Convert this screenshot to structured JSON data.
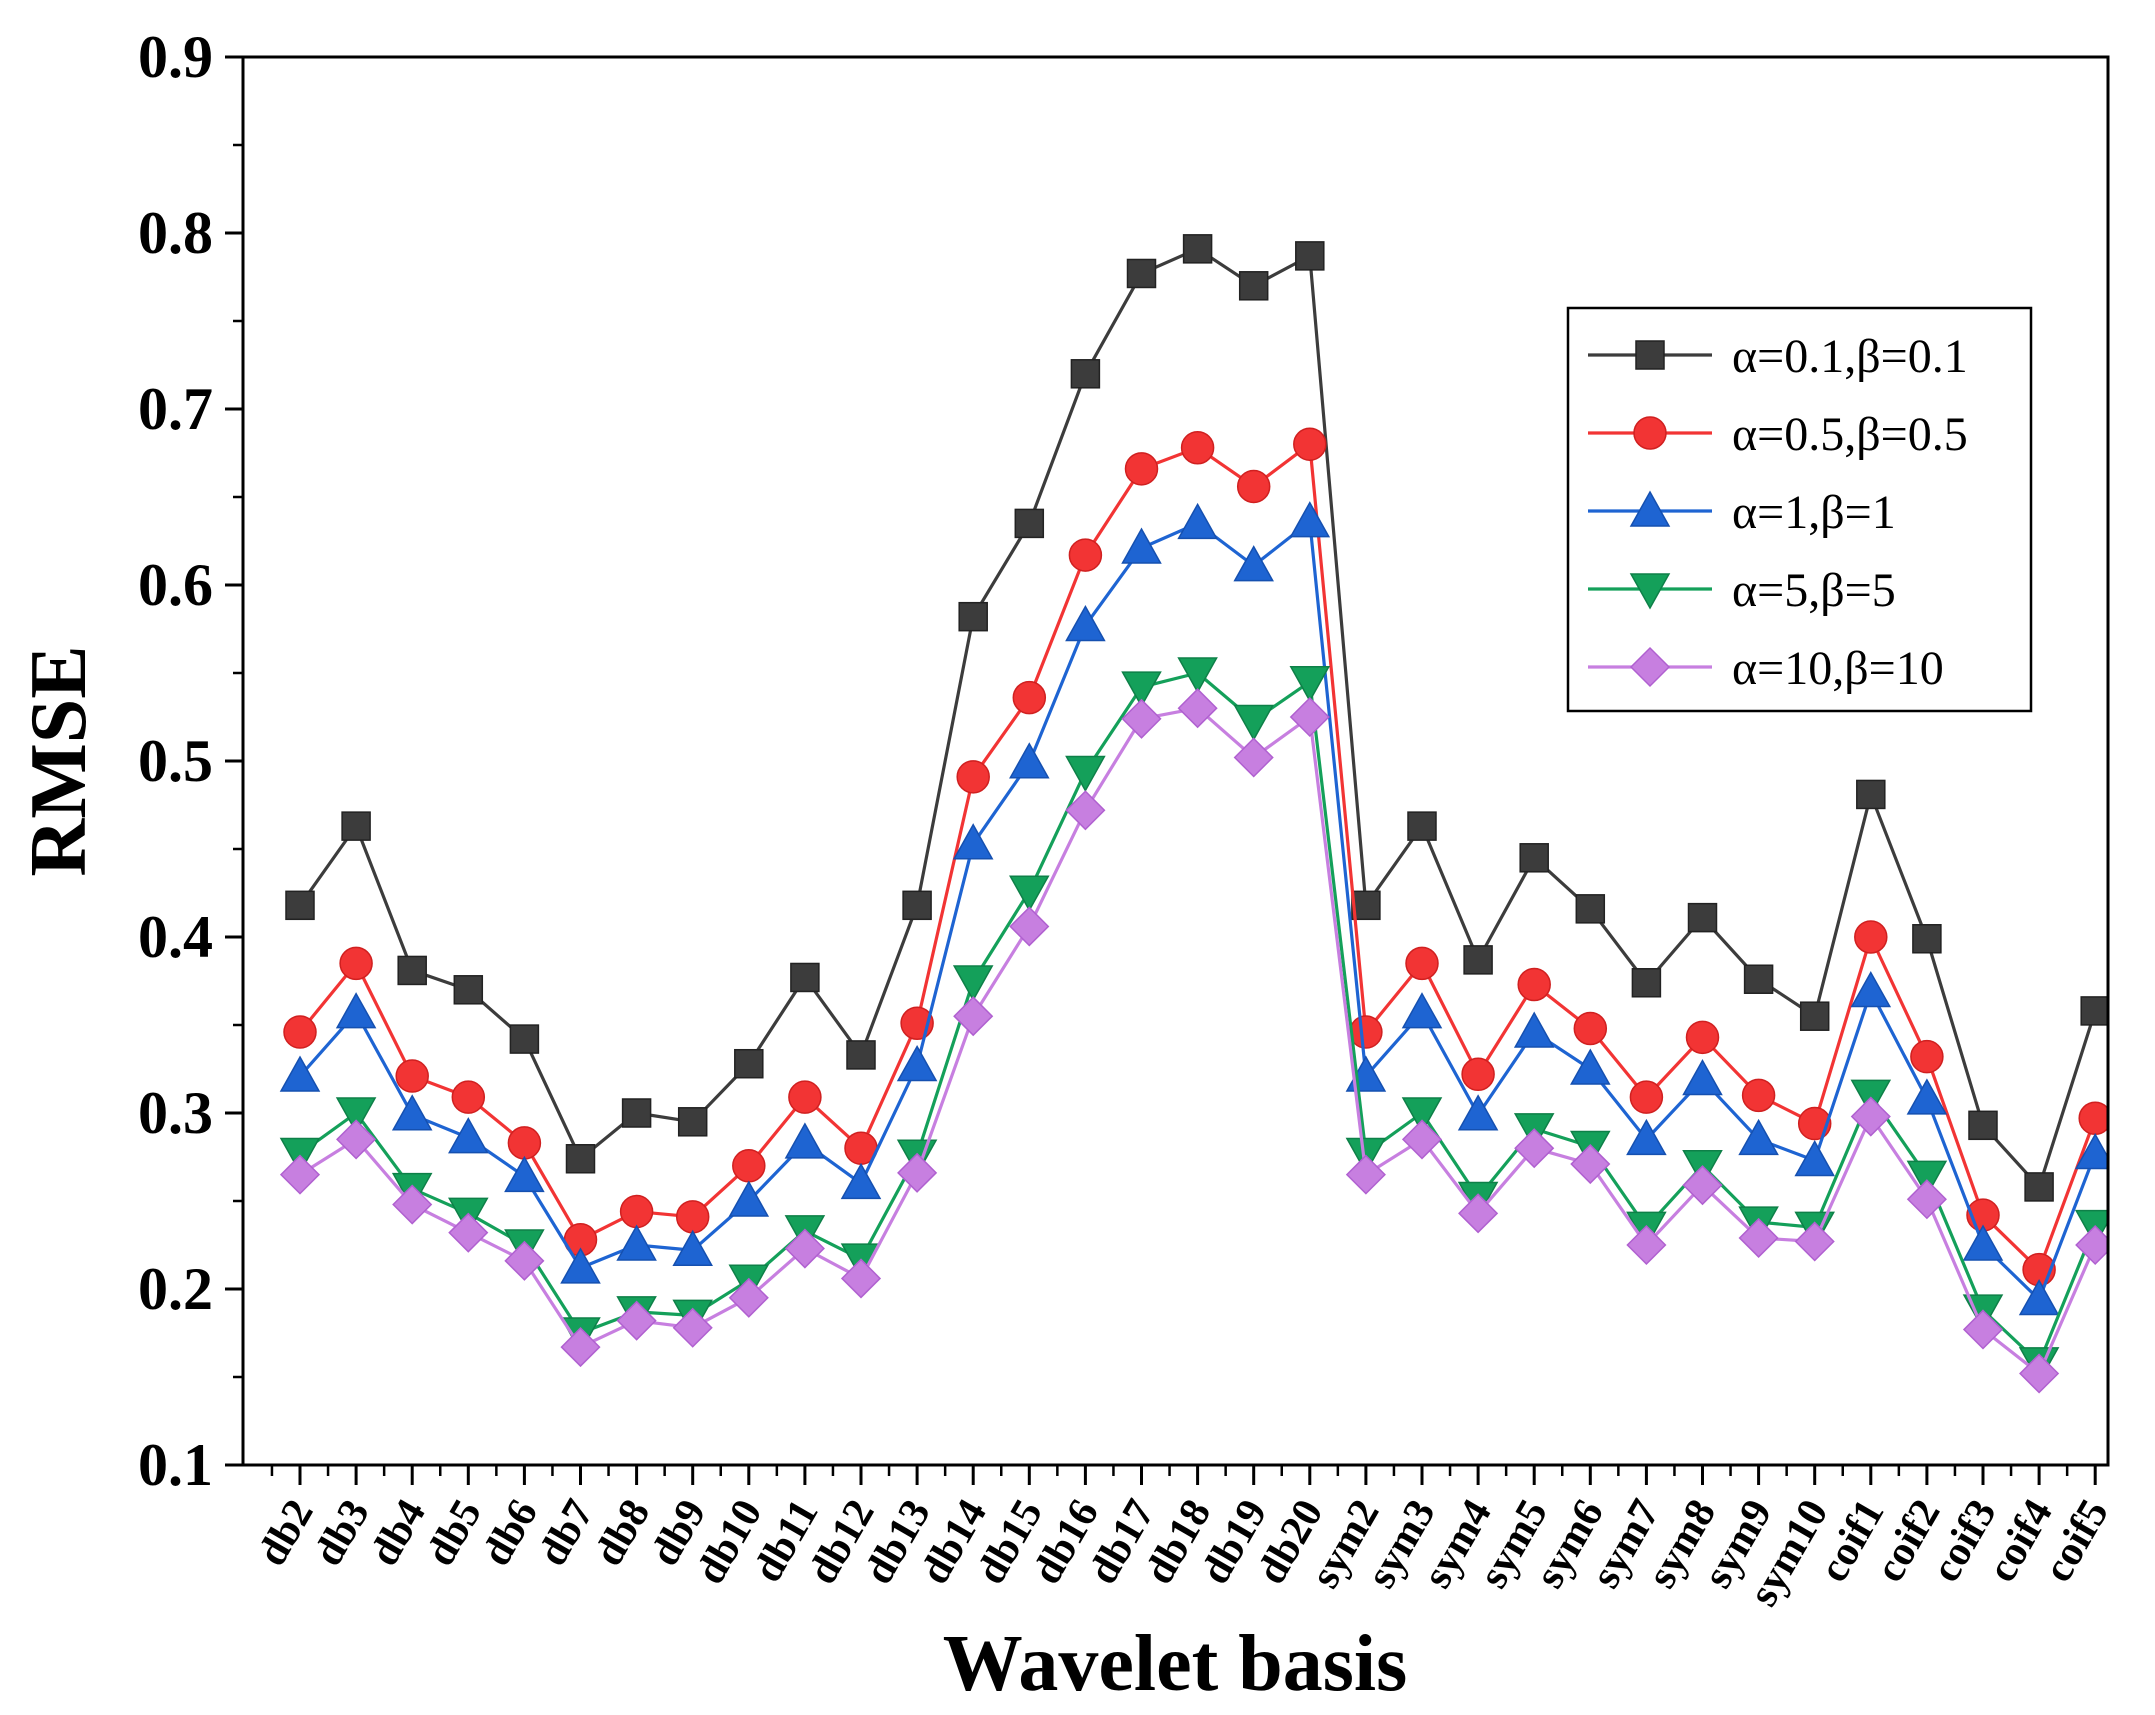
{
  "chart_data": {
    "type": "line",
    "title": "",
    "xlabel": "Wavelet basis",
    "ylabel": "RMSE",
    "ylim": [
      0.1,
      0.9
    ],
    "yticks": [
      "0.1",
      "0.2",
      "0.3",
      "0.4",
      "0.5",
      "0.6",
      "0.7",
      "0.8",
      "0.9"
    ],
    "legend_position": "top-right",
    "grid": false,
    "categories": [
      "db2",
      "db3",
      "db4",
      "db5",
      "db6",
      "db7",
      "db8",
      "db9",
      "db10",
      "db11",
      "db12",
      "db13",
      "db14",
      "db15",
      "db16",
      "db17",
      "db18",
      "db19",
      "db20",
      "sym2",
      "sym3",
      "sym4",
      "sym5",
      "sym6",
      "sym7",
      "sym8",
      "sym9",
      "sym10",
      "coif1",
      "coif2",
      "coif3",
      "coif4",
      "coif5"
    ],
    "series": [
      {
        "name": "α=0.1,β=0.1",
        "color": "#3c3c3c",
        "marker": "square",
        "values": [
          0.418,
          0.463,
          0.381,
          0.37,
          0.342,
          0.274,
          0.3,
          0.295,
          0.328,
          0.377,
          0.333,
          0.418,
          0.582,
          0.635,
          0.72,
          0.777,
          0.791,
          0.77,
          0.787,
          0.418,
          0.463,
          0.387,
          0.445,
          0.416,
          0.374,
          0.411,
          0.376,
          0.355,
          0.481,
          0.399,
          0.293,
          0.258,
          0.358
        ]
      },
      {
        "name": "α=0.5,β=0.5",
        "color": "#f23434",
        "marker": "circle",
        "values": [
          0.346,
          0.385,
          0.321,
          0.309,
          0.283,
          0.228,
          0.244,
          0.241,
          0.27,
          0.309,
          0.28,
          0.351,
          0.491,
          0.536,
          0.617,
          0.666,
          0.678,
          0.656,
          0.68,
          0.346,
          0.385,
          0.322,
          0.373,
          0.348,
          0.309,
          0.343,
          0.31,
          0.294,
          0.4,
          0.332,
          0.242,
          0.211,
          0.297
        ]
      },
      {
        "name": "α=1,β=1",
        "color": "#1e64d2",
        "marker": "triangle-up",
        "values": [
          0.321,
          0.357,
          0.299,
          0.286,
          0.264,
          0.212,
          0.225,
          0.222,
          0.25,
          0.283,
          0.26,
          0.327,
          0.453,
          0.499,
          0.577,
          0.621,
          0.635,
          0.611,
          0.636,
          0.321,
          0.357,
          0.299,
          0.346,
          0.325,
          0.285,
          0.319,
          0.285,
          0.273,
          0.369,
          0.308,
          0.225,
          0.194,
          0.277
        ]
      },
      {
        "name": "α=5,β=5",
        "color": "#14a05a",
        "marker": "triangle-down",
        "values": [
          0.277,
          0.3,
          0.257,
          0.243,
          0.225,
          0.175,
          0.187,
          0.185,
          0.205,
          0.233,
          0.217,
          0.276,
          0.375,
          0.426,
          0.494,
          0.542,
          0.55,
          0.523,
          0.545,
          0.277,
          0.3,
          0.252,
          0.291,
          0.281,
          0.235,
          0.27,
          0.238,
          0.235,
          0.31,
          0.264,
          0.188,
          0.158,
          0.236
        ]
      },
      {
        "name": "α=10,β=10",
        "color": "#c77fe0",
        "marker": "diamond",
        "values": [
          0.265,
          0.285,
          0.248,
          0.232,
          0.216,
          0.167,
          0.182,
          0.178,
          0.195,
          0.223,
          0.206,
          0.266,
          0.355,
          0.406,
          0.472,
          0.524,
          0.53,
          0.502,
          0.525,
          0.265,
          0.285,
          0.243,
          0.28,
          0.271,
          0.225,
          0.259,
          0.229,
          0.227,
          0.298,
          0.251,
          0.177,
          0.152,
          0.225
        ]
      }
    ]
  }
}
